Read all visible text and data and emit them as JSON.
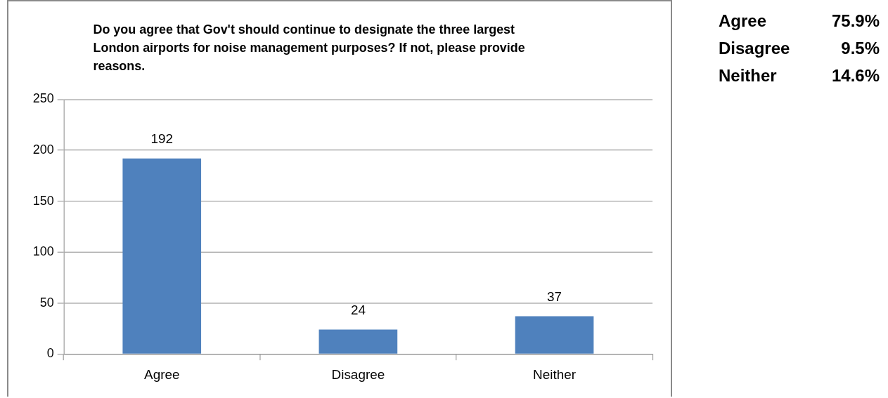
{
  "chart_data": [
    {
      "type": "bar",
      "title": "Do you agree that Gov't should continue to designate the three largest London airports for noise management purposes? If not, please provide reasons.",
      "categories": [
        "Agree",
        "Disagree",
        "Neither"
      ],
      "values": [
        192,
        24,
        37
      ],
      "color": "#4f81bd",
      "ylim": [
        0,
        250
      ],
      "yticks": [
        0,
        50,
        100,
        150,
        200,
        250
      ],
      "grid": "y",
      "data_labels": true
    },
    {
      "type": "other",
      "categories": [
        "Agree",
        "Disagree",
        "Neither"
      ],
      "value_labels": [
        "75.9%",
        "9.5%",
        "14.6%"
      ]
    }
  ]
}
